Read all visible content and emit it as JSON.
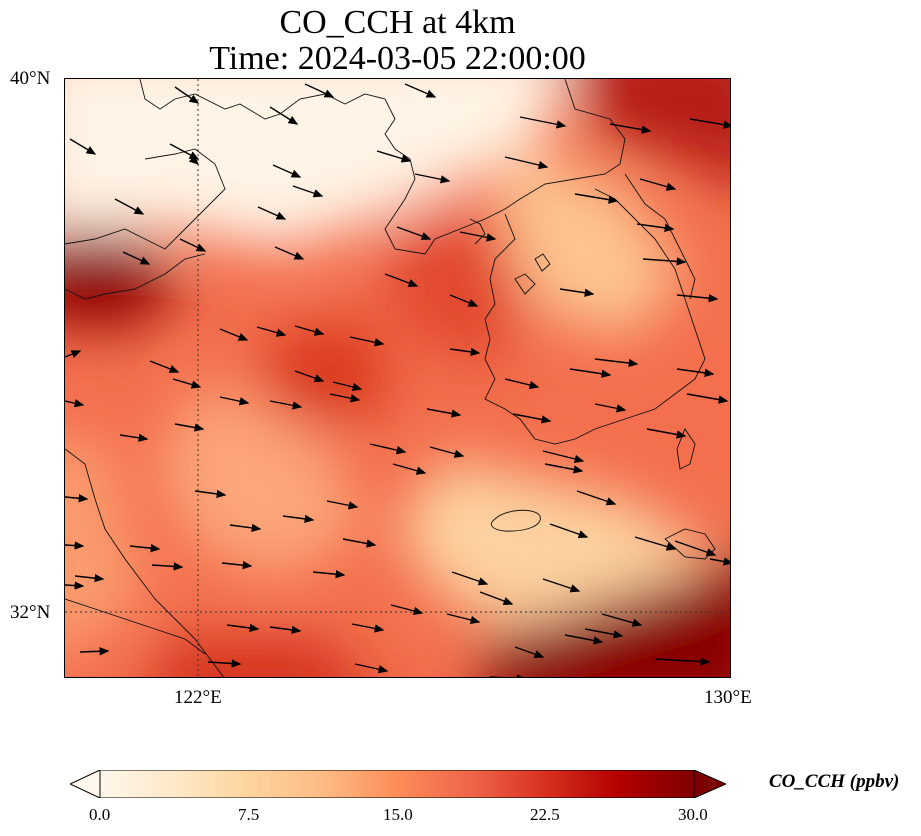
{
  "title": {
    "line1": "CO_CCH at 4km",
    "line2": "Time: 2024-03-05 22:00:00"
  },
  "map": {
    "lat_labels": [
      "40°N",
      "32°N"
    ],
    "lon_labels": [
      "122°E",
      "130°E"
    ],
    "extent": {
      "lon": [
        120,
        130
      ],
      "lat": [
        31,
        40
      ]
    },
    "gridlines": {
      "lon": [
        122
      ],
      "lat": [
        32
      ],
      "style": "dotted"
    },
    "field_description": "CO_CCH concentration shaded with OrRd-style colormap; wind vectors overlaid pointing mostly east-southeast",
    "coastlines": true
  },
  "colorbar": {
    "label": "CO_CCH (ppbv)",
    "ticks": [
      "0.0",
      "7.5",
      "15.0",
      "22.5",
      "30.0"
    ],
    "min": 0,
    "max": 30,
    "extend": "both",
    "colors": [
      "#fff7ec",
      "#fee8c8",
      "#fdd49e",
      "#fdbb84",
      "#fc8d59",
      "#ef6548",
      "#d7301f",
      "#b30000",
      "#7f0000"
    ]
  }
}
